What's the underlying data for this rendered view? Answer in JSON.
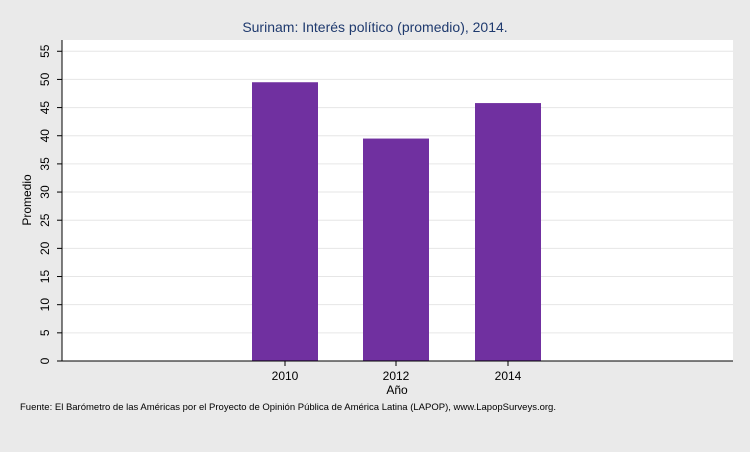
{
  "chart_data": {
    "type": "bar",
    "title": "Surinam: Interés político (promedio), 2014.",
    "xlabel": "Año",
    "ylabel": "Promedio",
    "categories": [
      "2010",
      "2012",
      "2014"
    ],
    "values": [
      49.5,
      39.5,
      45.8
    ],
    "ylim": [
      0,
      57
    ],
    "yticks": [
      0,
      5,
      10,
      15,
      20,
      25,
      30,
      35,
      40,
      45,
      50,
      55
    ],
    "grid": true,
    "legend": "none",
    "bar_color": "#7030a0"
  },
  "source_note": "Fuente: El Barómetro de las Américas por el Proyecto de Opinión Pública de América Latina (LAPOP), www.LapopSurveys.org."
}
